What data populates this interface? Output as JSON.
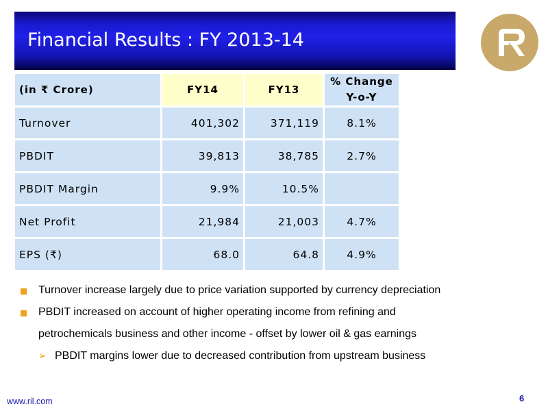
{
  "title": "Financial Results : FY 2013-14",
  "table": {
    "header": {
      "label": "(in ₹ Crore)",
      "fy14": "FY14",
      "fy13": "FY13",
      "change_line1": "% Change",
      "change_line2": "Y-o-Y"
    },
    "rows": [
      {
        "label": "Turnover",
        "fy14": "401,302",
        "fy13": "371,119",
        "change": "8.1%"
      },
      {
        "label": "PBDIT",
        "fy14": "39,813",
        "fy13": "38,785",
        "change": "2.7%"
      },
      {
        "label": "PBDIT Margin",
        "fy14": "9.9%",
        "fy13": "10.5%",
        "change": ""
      },
      {
        "label": "Net Profit",
        "fy14": "21,984",
        "fy13": "21,003",
        "change": "4.7%"
      },
      {
        "label": "EPS (₹)",
        "fy14": "68.0",
        "fy13": "64.8",
        "change": "4.9%"
      }
    ]
  },
  "bullets": {
    "b1": "Turnover increase largely due to price variation supported by currency depreciation",
    "b2_line1": "PBDIT increased on account of higher operating income from refining and",
    "b2_line2": "petrochemicals business and other income - offset by lower oil & gas earnings",
    "sub1": "PBDIT margins lower due to decreased contribution from upstream business"
  },
  "footer": {
    "url": "www.ril.com",
    "page": "6"
  },
  "colors": {
    "title_blue": "#1a1ad0",
    "logo_gold": "#c8a96a",
    "cell_blue": "#cfe1f4",
    "cell_yellow": "#ffffcc",
    "bullet_orange": "#f0a020"
  },
  "logo_icon": "reliance-logo"
}
